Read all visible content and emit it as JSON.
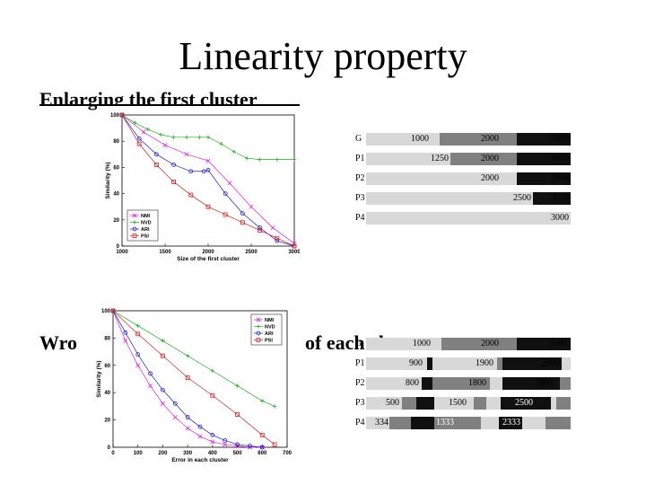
{
  "slide": {
    "title": "Linearity property",
    "heading1": "Enlarging the first cluster",
    "heading2_left": "Wro",
    "heading2_right": "of each cluster"
  },
  "chart_data": [
    {
      "type": "line",
      "xlabel": "Size of the first cluster",
      "ylabel": "Similarity (%)",
      "xlim": [
        1000,
        3000
      ],
      "ylim": [
        0,
        100
      ],
      "xticks": [
        1000,
        1500,
        2000,
        2500,
        3000
      ],
      "yticks": [
        0,
        20,
        40,
        60,
        80,
        100
      ],
      "legend_position": "bottom-left",
      "series": [
        {
          "name": "NMI",
          "color": "#e020e0",
          "marker": "x",
          "x": [
            1000,
            1250,
            1500,
            1750,
            2000,
            2250,
            2500,
            2750,
            3000
          ],
          "y": [
            100,
            87,
            77,
            70,
            65,
            48,
            30,
            14,
            2
          ]
        },
        {
          "name": "NVD",
          "color": "#18b018",
          "marker": "+",
          "x": [
            1000,
            1150,
            1300,
            1450,
            1600,
            1750,
            1900,
            2000,
            2150,
            2300,
            2450,
            2600,
            2800,
            3000
          ],
          "y": [
            100,
            94,
            89,
            85,
            83,
            83,
            83,
            83,
            78,
            72,
            67,
            66,
            66,
            66
          ]
        },
        {
          "name": "ARI",
          "color": "#2020c0",
          "marker": "o",
          "x": [
            1000,
            1200,
            1400,
            1600,
            1800,
            1950,
            2000,
            2200,
            2400,
            2600,
            2800,
            3000
          ],
          "y": [
            100,
            82,
            70,
            62,
            57,
            57,
            58,
            40,
            25,
            14,
            4,
            0
          ]
        },
        {
          "name": "PSI",
          "color": "#d02020",
          "marker": "s",
          "x": [
            1000,
            1200,
            1400,
            1600,
            1800,
            2000,
            2200,
            2400,
            2600,
            2800,
            3000
          ],
          "y": [
            100,
            78,
            62,
            49,
            39,
            30,
            24,
            18,
            12,
            6,
            0
          ]
        }
      ]
    },
    {
      "type": "line",
      "xlabel": "Error in each cluster",
      "ylabel": "Similarity (%)",
      "xlim": [
        0,
        700
      ],
      "ylim": [
        0,
        100
      ],
      "xticks": [
        0,
        100,
        200,
        300,
        400,
        500,
        600,
        700
      ],
      "yticks": [
        0,
        20,
        40,
        60,
        80,
        100
      ],
      "legend_position": "top-right",
      "series": [
        {
          "name": "NMI",
          "color": "#e020e0",
          "marker": "x",
          "x": [
            0,
            50,
            100,
            150,
            200,
            250,
            300,
            350,
            400,
            450,
            500,
            550,
            600
          ],
          "y": [
            100,
            78,
            60,
            45,
            32,
            22,
            14,
            8,
            4,
            2,
            1,
            0,
            0
          ]
        },
        {
          "name": "NVD",
          "color": "#18b018",
          "marker": "+",
          "x": [
            0,
            100,
            200,
            300,
            400,
            500,
            600,
            650
          ],
          "y": [
            100,
            89,
            78,
            67,
            56,
            45,
            34,
            30
          ]
        },
        {
          "name": "ARI",
          "color": "#2020c0",
          "marker": "o",
          "x": [
            0,
            50,
            100,
            150,
            200,
            250,
            300,
            350,
            400,
            450,
            500,
            550,
            600
          ],
          "y": [
            100,
            84,
            68,
            54,
            42,
            32,
            22,
            15,
            9,
            5,
            2,
            1,
            0
          ]
        },
        {
          "name": "PSI",
          "color": "#d02020",
          "marker": "s",
          "x": [
            0,
            100,
            200,
            300,
            400,
            500,
            600,
            650
          ],
          "y": [
            100,
            83,
            67,
            51,
            38,
            24,
            9,
            2
          ]
        }
      ]
    }
  ],
  "bars1": [
    {
      "label": "G",
      "numbers": [
        "1000",
        "2000",
        "3000"
      ]
    },
    {
      "label": "P1",
      "numbers": [
        "1250",
        "2000",
        "3000"
      ]
    },
    {
      "label": "P2",
      "numbers": [
        "2000",
        "3000"
      ]
    },
    {
      "label": "P3",
      "numbers": [
        "2500",
        "3000"
      ]
    },
    {
      "label": "P4",
      "numbers": [
        "3000"
      ]
    }
  ],
  "bars2": [
    {
      "label": "G",
      "numbers": [
        "1000",
        "2000",
        "3000"
      ]
    },
    {
      "label": "P1",
      "numbers": [
        "900",
        "1900",
        "2900"
      ]
    },
    {
      "label": "P2",
      "numbers": [
        "800",
        "1800",
        "2800"
      ]
    },
    {
      "label": "P3",
      "numbers": [
        "500",
        "1500",
        "2500"
      ]
    },
    {
      "label": "P4",
      "numbers": [
        "334",
        "1333",
        "2333"
      ]
    }
  ],
  "colors": {
    "light": "#d8d8d8",
    "mid": "#808080",
    "dark": "#101010",
    "white": "#ffffff"
  }
}
